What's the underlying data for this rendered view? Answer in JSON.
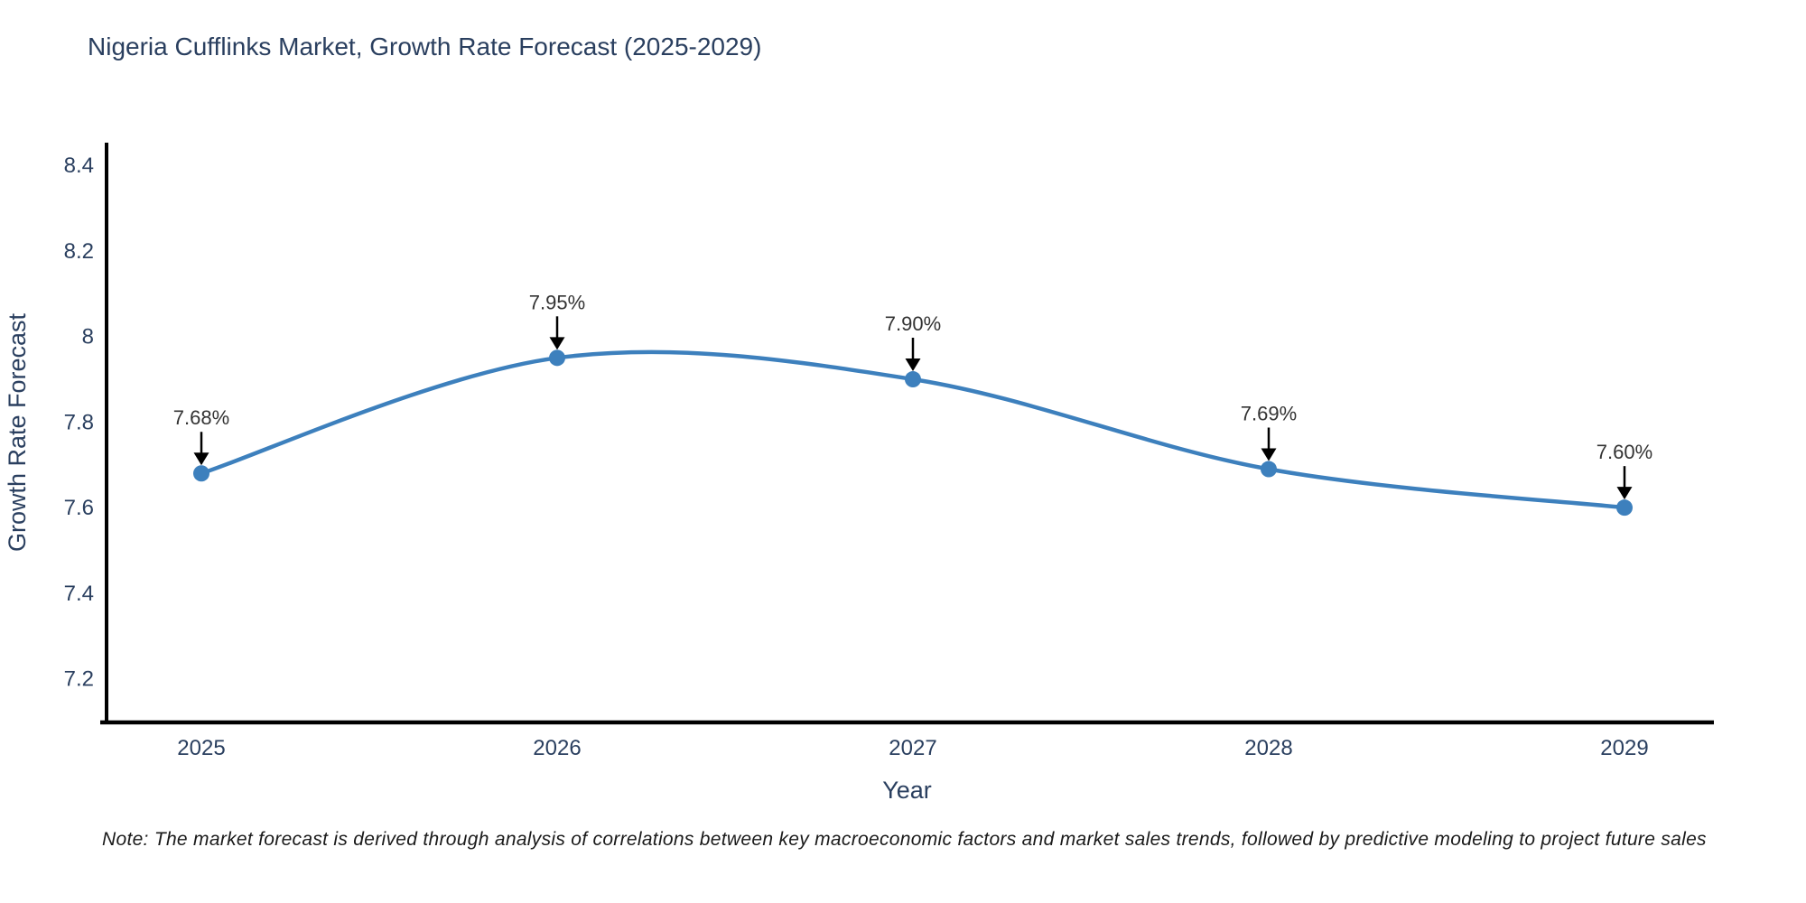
{
  "chart_data": {
    "type": "line",
    "title": "Nigeria Cufflinks Market, Growth Rate Forecast (2025-2029)",
    "xlabel": "Year",
    "ylabel": "Growth Rate Forecast",
    "categories": [
      "2025",
      "2026",
      "2027",
      "2028",
      "2029"
    ],
    "series": [
      {
        "name": "Growth Rate Forecast",
        "values": [
          7.68,
          7.95,
          7.9,
          7.69,
          7.6
        ]
      }
    ],
    "point_labels": [
      "7.68%",
      "7.95%",
      "7.90%",
      "7.69%",
      "7.60%"
    ],
    "y_ticks": [
      7.2,
      7.4,
      7.6,
      7.8,
      8.0,
      8.2,
      8.4
    ],
    "y_tick_labels": [
      "7.2",
      "7.4",
      "7.6",
      "7.8",
      "8",
      "8.2",
      "8.4"
    ],
    "ylim": [
      7.098,
      8.453
    ],
    "line_shape": "spline",
    "grid": false,
    "legend": "none",
    "colors": {
      "line": "#3d80bd",
      "marker": "#3d80bd",
      "axis": "#000000",
      "text": "#2a3f5f",
      "annotation_text": "#333333",
      "arrow": "#000000",
      "background": "#ffffff"
    }
  },
  "note": "Note: The market forecast is derived through analysis of correlations between key macroeconomic factors and market sales trends, followed by predictive modeling to project future sales"
}
